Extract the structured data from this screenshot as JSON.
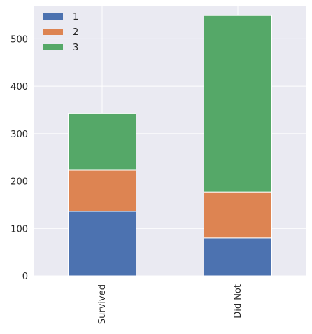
{
  "chart_data": {
    "type": "bar",
    "stacked": true,
    "categories": [
      "Survived",
      "Did Not"
    ],
    "series": [
      {
        "name": "1",
        "values": [
          136,
          80
        ],
        "color": "#4c72b0"
      },
      {
        "name": "2",
        "values": [
          87,
          97
        ],
        "color": "#dd8452"
      },
      {
        "name": "3",
        "values": [
          119,
          372
        ],
        "color": "#55a868"
      }
    ],
    "title": "",
    "xlabel": "",
    "ylabel": "",
    "ylim": [
      0,
      570
    ],
    "yticks": [
      0,
      100,
      200,
      300,
      400,
      500
    ],
    "grid": true,
    "legend_position": "top-left",
    "background_color": "#eaeaf2",
    "grid_color": "#ffffff"
  }
}
